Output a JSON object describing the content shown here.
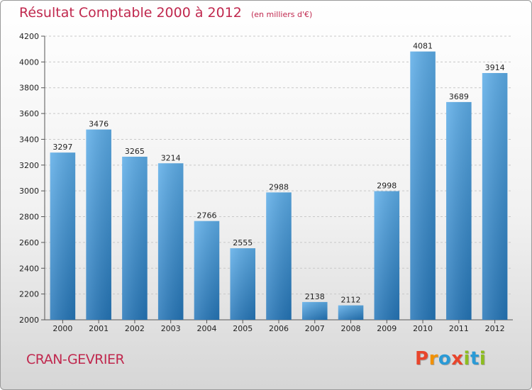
{
  "title": "Résultat Comptable 2000 à 2012",
  "subtitle": "(en milliers d'€)",
  "commune": "CRAN-GEVRIER",
  "logo": {
    "text": "Proxiti",
    "letters": [
      {
        "char": "P",
        "color": "#e8452c"
      },
      {
        "char": "r",
        "color": "#f29100"
      },
      {
        "char": "o",
        "color": "#2a9ad6"
      },
      {
        "char": "x",
        "color": "#e8452c"
      },
      {
        "char": "i",
        "color": "#8dbd1f"
      },
      {
        "char": "t",
        "color": "#2a9ad6"
      },
      {
        "char": "i",
        "color": "#8dbd1f"
      }
    ]
  },
  "colors": {
    "title": "#c0284e",
    "bar_top": "#5dade8",
    "bar_bottom": "#2576b8",
    "grid": "#c8c8c8",
    "axis": "#555555"
  },
  "chart_data": {
    "type": "bar",
    "title": "Résultat Comptable 2000 à 2012",
    "subtitle": "(en milliers d'€)",
    "xlabel": "",
    "ylabel": "",
    "categories": [
      "2000",
      "2001",
      "2002",
      "2003",
      "2004",
      "2005",
      "2006",
      "2007",
      "2008",
      "2009",
      "2010",
      "2011",
      "2012"
    ],
    "values": [
      3297,
      3476,
      3265,
      3214,
      2766,
      2555,
      2988,
      2138,
      2112,
      2998,
      4081,
      3689,
      3914
    ],
    "ylim": [
      2000,
      4200
    ],
    "yticks": [
      2000,
      2200,
      2400,
      2600,
      2800,
      3000,
      3200,
      3400,
      3600,
      3800,
      4000,
      4200
    ],
    "grid": "horizontal dashed",
    "legend": "none"
  }
}
